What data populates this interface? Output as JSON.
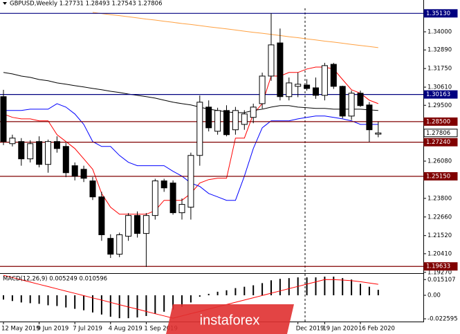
{
  "chart_data": [
    {
      "type": "candlestick",
      "title": "GBPUSD,Weekly  1.27731 1.28493 1.27543 1.27806",
      "ylim": [
        1.1922,
        1.3544
      ],
      "yticks": [
        {
          "value": 1.34,
          "label": "1.34000"
        },
        {
          "value": 1.3289,
          "label": "1.32890"
        },
        {
          "value": 1.3175,
          "label": "1.31750"
        },
        {
          "value": 1.3061,
          "label": "1.30610"
        },
        {
          "value": 1.295,
          "label": "1.29500"
        },
        {
          "value": 1.2608,
          "label": "1.26080"
        },
        {
          "value": 1.238,
          "label": "1.23800"
        },
        {
          "value": 1.2266,
          "label": "1.22660"
        },
        {
          "value": 1.2152,
          "label": "1.21520"
        },
        {
          "value": 1.2041,
          "label": "1.20410"
        },
        {
          "value": 1.1927,
          "label": "1.19270"
        }
      ],
      "x_tick_labels": [
        "12 May 2019",
        "9 Jun 2019",
        "7 Jul 2019",
        "4 Aug 2019",
        "1 Sep 2019",
        "Dec 2019",
        "19 Jan 2020",
        "16 Feb 2020"
      ],
      "bull_color": "#ffffff",
      "bear_color": "#000000",
      "ohlc": [
        [
          1.3003,
          1.3045,
          1.2706,
          1.2728
        ],
        [
          1.2715,
          1.277,
          1.2698,
          1.2749
        ],
        [
          1.2728,
          1.2749,
          1.258,
          1.2622
        ],
        [
          1.2622,
          1.2736,
          1.26,
          1.2715
        ],
        [
          1.2728,
          1.276,
          1.257,
          1.2588
        ],
        [
          1.2588,
          1.274,
          1.2537,
          1.2728
        ],
        [
          1.2728,
          1.276,
          1.266,
          1.2685
        ],
        [
          1.2698,
          1.272,
          1.251,
          1.2537
        ],
        [
          1.258,
          1.26,
          1.249,
          1.2516
        ],
        [
          1.2558,
          1.258,
          1.248,
          1.2503
        ],
        [
          1.2487,
          1.251,
          1.237,
          1.2389
        ],
        [
          1.2389,
          1.242,
          1.212,
          1.2157
        ],
        [
          1.2135,
          1.216,
          1.2015,
          1.2038
        ],
        [
          1.2038,
          1.217,
          1.202,
          1.2157
        ],
        [
          1.2148,
          1.229,
          1.212,
          1.2275
        ],
        [
          1.2275,
          1.23,
          1.214,
          1.2165
        ],
        [
          1.2165,
          1.229,
          1.196,
          1.2275
        ],
        [
          1.2275,
          1.25,
          1.225,
          1.2487
        ],
        [
          1.2487,
          1.25,
          1.242,
          1.2444
        ],
        [
          1.2474,
          1.249,
          1.228,
          1.2292
        ],
        [
          1.2292,
          1.238,
          1.225,
          1.2343
        ],
        [
          1.2326,
          1.266,
          1.225,
          1.2643
        ],
        [
          1.2643,
          1.301,
          1.258,
          1.2969
        ],
        [
          1.2939,
          1.298,
          1.279,
          1.2812
        ],
        [
          1.2791,
          1.2935,
          1.277,
          1.2918
        ],
        [
          1.2918,
          1.295,
          1.276,
          1.277
        ],
        [
          1.28,
          1.294,
          1.277,
          1.2918
        ],
        [
          1.2833,
          1.292,
          1.28,
          1.2897
        ],
        [
          1.2876,
          1.296,
          1.284,
          1.2939
        ],
        [
          1.296,
          1.315,
          1.293,
          1.3129
        ],
        [
          1.3129,
          1.3514,
          1.31,
          1.332
        ],
        [
          1.3332,
          1.342,
          1.298,
          1.3003
        ],
        [
          1.3003,
          1.312,
          1.298,
          1.3087
        ],
        [
          1.3066,
          1.315,
          1.3,
          1.3079
        ],
        [
          1.3074,
          1.311,
          1.304,
          1.3053
        ],
        [
          1.3057,
          1.312,
          1.299,
          1.3011
        ],
        [
          1.3011,
          1.321,
          1.298,
          1.3193
        ],
        [
          1.3201,
          1.321,
          1.305,
          1.3066
        ],
        [
          1.3066,
          1.307,
          1.287,
          1.2884
        ],
        [
          1.2884,
          1.304,
          1.286,
          1.3024
        ],
        [
          1.3024,
          1.304,
          1.294,
          1.2948
        ],
        [
          1.2952,
          1.297,
          1.2725,
          1.28
        ],
        [
          1.27731,
          1.28493,
          1.27543,
          1.27806
        ]
      ],
      "series": [
        {
          "color": "#ff0000",
          "values": [
            1.2897,
            1.2876,
            1.2867,
            1.2867,
            1.2855,
            1.2855,
            1.277,
            1.2728,
            1.2685,
            1.2622,
            1.2558,
            1.241,
            1.2326,
            1.2283,
            1.2283,
            1.2283,
            1.2283,
            1.2305,
            1.2368,
            1.2368,
            1.2368,
            1.241,
            1.2474,
            1.2495,
            1.2503,
            1.2503,
            1.2749,
            1.2749,
            1.2897,
            1.296,
            1.3129,
            1.3129,
            1.3151,
            1.3151,
            1.3172,
            1.3184,
            1.3184,
            1.3172,
            1.3108,
            1.3045,
            1.3024,
            1.2981,
            1.296
          ]
        },
        {
          "color": "#0000ff",
          "values": [
            1.2918,
            1.2918,
            1.2918,
            1.2926,
            1.2926,
            1.2926,
            1.296,
            1.2939,
            1.2897,
            1.2833,
            1.2728,
            1.2698,
            1.2698,
            1.2643,
            1.2601,
            1.258,
            1.258,
            1.258,
            1.258,
            1.2546,
            1.2516,
            1.2474,
            1.2453,
            1.241,
            1.2389,
            1.2368,
            1.2368,
            1.2516,
            1.2685,
            1.2812,
            1.2855,
            1.2855,
            1.2855,
            1.2867,
            1.2876,
            1.2884,
            1.2884,
            1.2876,
            1.2867,
            1.2855,
            1.2833,
            1.2833,
            1.2833
          ]
        },
        {
          "color": "#000000",
          "values": [
            1.3151,
            1.3142,
            1.3129,
            1.3121,
            1.3108,
            1.31,
            1.3087,
            1.3079,
            1.307,
            1.3062,
            1.3053,
            1.3045,
            1.3036,
            1.3028,
            1.3019,
            1.3011,
            1.3003,
            1.2994,
            1.2981,
            1.2969,
            1.296,
            1.2952,
            1.2939,
            1.2926,
            1.2918,
            1.2909,
            1.2905,
            1.2905,
            1.2918,
            1.2926,
            1.2939,
            1.2948,
            1.2948,
            1.2939,
            1.2935,
            1.2931,
            1.2931,
            1.2926,
            1.2926,
            1.2926,
            1.2926,
            1.2922,
            1.2918
          ]
        },
        {
          "color": "#ffa040",
          "values": [
            null,
            null,
            null,
            null,
            null,
            null,
            null,
            null,
            null,
            null,
            1.3519,
            1.3512,
            1.3505,
            1.3499,
            1.3492,
            1.3485,
            1.3478,
            1.3472,
            1.3465,
            1.3458,
            1.3451,
            1.3445,
            1.3438,
            1.3431,
            1.3424,
            1.3418,
            1.3411,
            1.3404,
            1.3397,
            1.3391,
            1.3384,
            1.3377,
            1.337,
            1.3364,
            1.3357,
            1.335,
            1.3343,
            1.3337,
            1.333,
            1.3323,
            1.3316,
            1.331,
            1.3303
          ]
        }
      ],
      "levels": [
        {
          "value": 1.3513,
          "label": "1.35130",
          "color": "#000080"
        },
        {
          "value": 1.30163,
          "label": "1.30163",
          "color": "#000080"
        },
        {
          "value": 1.285,
          "label": "1.28500",
          "color": "#800000"
        },
        {
          "value": 1.27806,
          "label": "1.27806",
          "color": "#ffffff"
        },
        {
          "value": 1.2724,
          "label": "1.27240",
          "color": "#800000"
        },
        {
          "value": 1.2515,
          "label": "1.25150",
          "color": "#800000"
        },
        {
          "value": 1.19633,
          "label": "1.19633",
          "color": "#800000"
        }
      ]
    },
    {
      "type": "macd",
      "title": "MACD(12,26,9) 0.005249 0.010596",
      "ylim": [
        -0.0239,
        0.0206
      ],
      "yticks": [
        0.015107,
        {
          "value": 0,
          "label": "0.00"
        },
        -0.022595
      ],
      "color": "#000000",
      "values": [
        -0.0041,
        -0.0055,
        -0.0069,
        -0.0076,
        -0.0082,
        -0.0096,
        -0.0103,
        -0.0117,
        -0.013,
        -0.0144,
        -0.0165,
        -0.0185,
        -0.0206,
        -0.022,
        -0.022,
        -0.0213,
        -0.0199,
        -0.0179,
        -0.0158,
        -0.0137,
        -0.011,
        -0.0069,
        -0.0014,
        0.0014,
        0.0034,
        0.0048,
        0.0069,
        0.0082,
        0.0096,
        0.0117,
        0.0144,
        0.0158,
        0.0165,
        0.0172,
        0.0172,
        0.0172,
        0.0179,
        0.0179,
        0.0165,
        0.0151,
        0.011,
        0.0082,
        0.005249
      ],
      "signal": {
        "color": "#ff0000",
        "values": [
          0.0192,
          0.0171,
          0.0149,
          0.0127,
          0.0105,
          0.0084,
          0.0062,
          0.004,
          0.0019,
          -0.0003,
          -0.0025,
          -0.0046,
          -0.0068,
          -0.009,
          -0.0112,
          -0.0133,
          -0.0155,
          -0.0177,
          -0.0198,
          -0.022,
          -0.0198,
          -0.0176,
          -0.0155,
          -0.0133,
          -0.0111,
          -0.0089,
          -0.0067,
          -0.0046,
          -0.0024,
          -0.0002,
          0.002,
          0.0042,
          0.0064,
          0.0085,
          0.0107,
          0.0129,
          0.0151,
          0.015,
          0.0146,
          0.014,
          0.013,
          0.0118,
          0.010596
        ]
      }
    }
  ],
  "watermark": "instaforex"
}
